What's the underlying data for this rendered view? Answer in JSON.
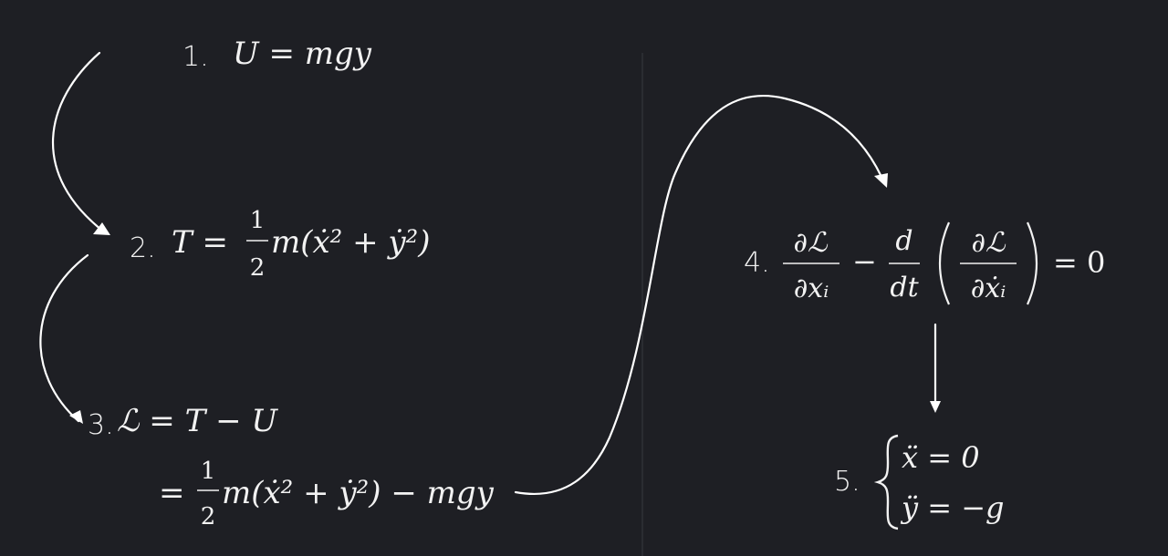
{
  "background": "#1e1f24",
  "ink": "#f2f2f2",
  "steps": [
    {
      "number": "1.",
      "formula": "U = mgy"
    },
    {
      "number": "2.",
      "lhs": "T =",
      "numerator": "1",
      "denominator": "2",
      "rest": "m(ẋ² + ẏ²)"
    },
    {
      "number": "3.",
      "line1": "ℒ = T − U",
      "eq": "=",
      "numerator": "1",
      "denominator": "2",
      "rest": "m(ẋ² + ẏ²) − mgy"
    },
    {
      "number": "4.",
      "f1_num": "∂ℒ",
      "f1_den": "∂xᵢ",
      "minus": "−",
      "f2_num": "d",
      "f2_den": "dt",
      "f3_num": "∂ℒ",
      "f3_den": "∂ẋᵢ",
      "rhs": "= 0"
    },
    {
      "number": "5.",
      "eq1": "ẍ = 0",
      "eq2": "ÿ = −g"
    }
  ]
}
